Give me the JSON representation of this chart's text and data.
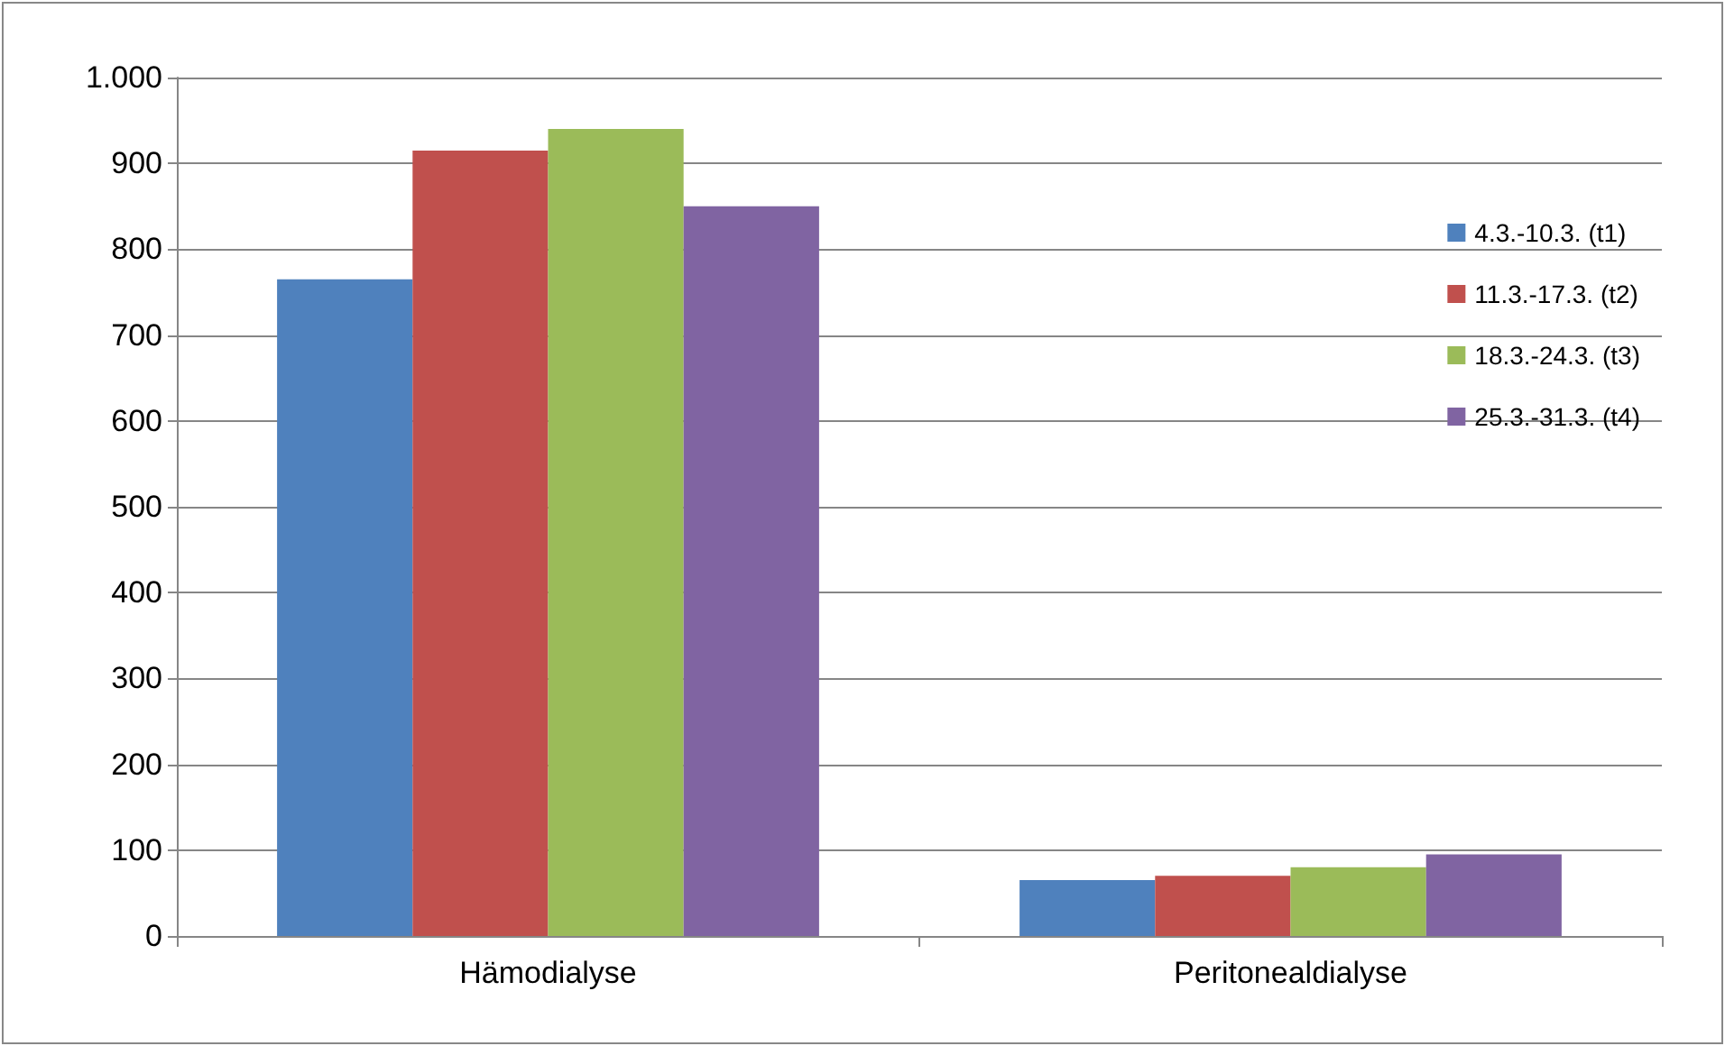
{
  "chart_data": {
    "type": "bar",
    "categories": [
      "Hämodialyse",
      "Peritonealdialyse"
    ],
    "series": [
      {
        "name": "4.3.-10.3. (t1)",
        "color": "#4f81bd",
        "values": [
          765,
          65
        ]
      },
      {
        "name": "11.3.-17.3. (t2)",
        "color": "#c0504d",
        "values": [
          915,
          70
        ]
      },
      {
        "name": "18.3.-24.3. (t3)",
        "color": "#9bbb59",
        "values": [
          940,
          80
        ]
      },
      {
        "name": "25.3.-31.3. (t4)",
        "color": "#8064a2",
        "values": [
          850,
          95
        ]
      }
    ],
    "ylim": [
      0,
      1000
    ],
    "yticks": [
      0,
      100,
      200,
      300,
      400,
      500,
      600,
      700,
      800,
      900,
      {
        "value": 1000,
        "label": "1.000"
      }
    ],
    "grid": "y",
    "legend": "right"
  }
}
